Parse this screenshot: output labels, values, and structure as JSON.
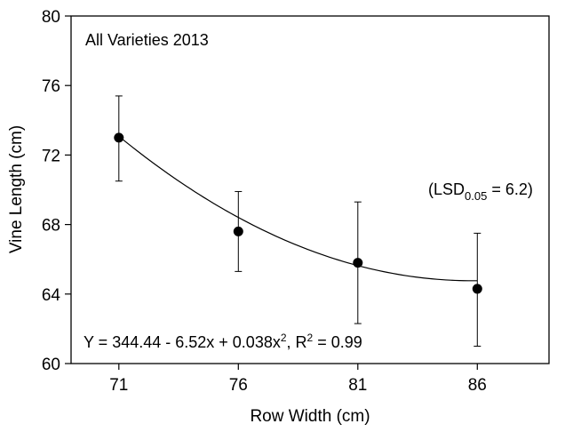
{
  "chart_data": {
    "type": "scatter",
    "title": "All Varieties 2013",
    "xlabel": "Row Width (cm)",
    "ylabel": "Vine Length (cm)",
    "xlim": [
      69,
      89
    ],
    "ylim": [
      60,
      80
    ],
    "x_ticks": [
      71,
      76,
      81,
      86
    ],
    "y_ticks": [
      60,
      64,
      68,
      72,
      76,
      80
    ],
    "grid": false,
    "points": [
      {
        "x": 71,
        "y": 73.0,
        "err_low": 70.5,
        "err_high": 75.4
      },
      {
        "x": 76,
        "y": 67.6,
        "err_low": 65.3,
        "err_high": 69.9
      },
      {
        "x": 81,
        "y": 65.8,
        "err_low": 62.3,
        "err_high": 69.3
      },
      {
        "x": 86,
        "y": 64.3,
        "err_low": 61.0,
        "err_high": 67.5
      }
    ],
    "fit": {
      "type": "quadratic",
      "a": 344.44,
      "b": -6.52,
      "c": 0.038,
      "x_range": [
        71,
        86
      ]
    },
    "equation": {
      "main": "Y = 344.44 - 6.52x + 0.038x",
      "sup1": "2",
      "r_label": ", R",
      "sup2": "2",
      "r_value": " = 0.99"
    },
    "lsd": {
      "open": "(LSD",
      "sub": "0.05",
      "rest": " = 6.2)"
    }
  }
}
